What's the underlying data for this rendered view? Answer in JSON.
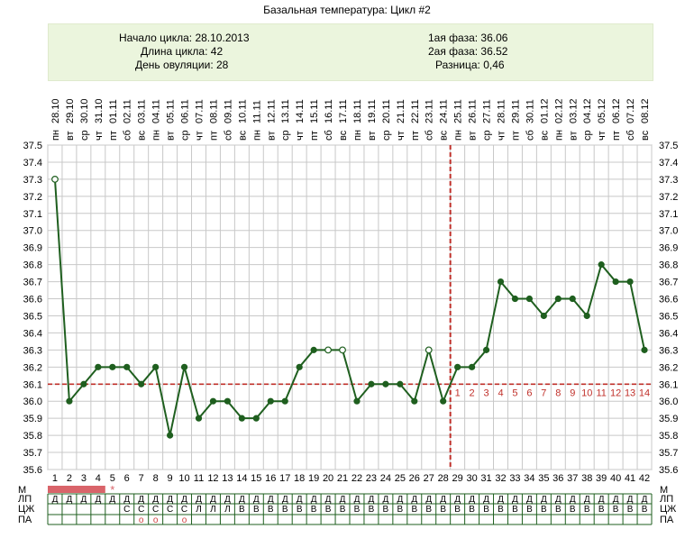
{
  "chart_data": {
    "type": "line",
    "title": "Базальная температура: Цикл #2",
    "summary": {
      "cycle_start": "Начало цикла: 28.10.2013",
      "cycle_length": "Длина цикла: 42",
      "ovulation_day": "День овуляции: 28",
      "phase1": "1ая фаза: 36.06",
      "phase2": "2ая фаза: 36.52",
      "difference": "Разница: 0,46"
    },
    "dates": [
      "28.10",
      "29.10",
      "30.10",
      "31.10",
      "01.11",
      "02.11",
      "03.11",
      "04.11",
      "05.11",
      "06.11",
      "07.11",
      "08.11",
      "09.11",
      "10.11",
      "11.11",
      "12.11",
      "13.11",
      "14.11",
      "15.11",
      "16.11",
      "17.11",
      "18.11",
      "19.11",
      "20.11",
      "21.11",
      "22.11",
      "23.11",
      "24.11",
      "25.11",
      "26.11",
      "27.11",
      "28.11",
      "29.11",
      "30.11",
      "01.12",
      "02.12",
      "03.12",
      "04.12",
      "05.12",
      "06.12",
      "07.12",
      "08.12"
    ],
    "weekdays": [
      "пн",
      "вт",
      "ср",
      "чт",
      "пт",
      "сб",
      "вс",
      "пн",
      "вт",
      "ср",
      "чт",
      "пт",
      "сб",
      "вс",
      "пн",
      "вт",
      "ср",
      "чт",
      "пт",
      "сб",
      "вс",
      "пн",
      "вт",
      "ср",
      "чт",
      "пт",
      "сб",
      "вс",
      "пн",
      "вт",
      "ср",
      "чт",
      "пт",
      "сб",
      "вс",
      "пн",
      "вт",
      "ср",
      "чт",
      "пт",
      "сб",
      "вс"
    ],
    "days": [
      1,
      2,
      3,
      4,
      5,
      6,
      7,
      8,
      9,
      10,
      11,
      12,
      13,
      14,
      15,
      16,
      17,
      18,
      19,
      20,
      21,
      22,
      23,
      24,
      25,
      26,
      27,
      28,
      29,
      30,
      31,
      32,
      33,
      34,
      35,
      36,
      37,
      38,
      39,
      40,
      41,
      42
    ],
    "values": [
      37.3,
      36.0,
      36.1,
      36.2,
      36.2,
      36.2,
      36.1,
      36.2,
      35.8,
      36.2,
      35.9,
      36.0,
      36.0,
      35.9,
      35.9,
      36.0,
      36.0,
      36.2,
      36.3,
      36.3,
      36.3,
      36.0,
      36.1,
      36.1,
      36.1,
      36.0,
      36.3,
      36.0,
      36.2,
      36.2,
      36.3,
      36.7,
      36.6,
      36.6,
      36.5,
      36.6,
      36.6,
      36.5,
      36.8,
      36.7,
      36.7,
      36.3
    ],
    "open_markers": [
      1,
      20,
      21,
      27
    ],
    "ylim": [
      35.6,
      37.5
    ],
    "y_ticks": [
      "37.5",
      "37.4",
      "37.3",
      "37.2",
      "37.1",
      "37.0",
      "36.9",
      "36.8",
      "36.7",
      "36.6",
      "36.5",
      "36.4",
      "36.3",
      "36.2",
      "36.1",
      "36.0",
      "35.9",
      "35.8",
      "35.7",
      "35.6"
    ],
    "coverline": 36.1,
    "ovulation_day_index": 28,
    "luteal_labels": [
      "1",
      "2",
      "3",
      "4",
      "5",
      "6",
      "7",
      "8",
      "9",
      "10",
      "11",
      "12",
      "13",
      "14"
    ],
    "row_labels": {
      "m": "М",
      "lp": "ЛП",
      "cj": "ЦЖ",
      "pa": "ПА"
    },
    "menstruation_days": 4,
    "star_day": 5,
    "star_symbol": "*",
    "lp_row": [
      "Д",
      "Д",
      "Д",
      "Д",
      "Д",
      "Д",
      "Д",
      "Д",
      "Д",
      "Д",
      "Д",
      "Д",
      "Д",
      "Д",
      "Д",
      "Д",
      "Д",
      "Д",
      "Д",
      "Д",
      "Д",
      "Д",
      "Д",
      "Д",
      "Д",
      "Д",
      "Д",
      "Д",
      "Д",
      "Д",
      "Д",
      "Д",
      "Д",
      "Д",
      "Д",
      "Д",
      "Д",
      "Д",
      "Д",
      "Д",
      "Д",
      "Д"
    ],
    "cj_row": [
      "",
      "",
      "",
      "",
      "",
      "С",
      "С",
      "С",
      "С",
      "С",
      "Л",
      "Л",
      "Л",
      "В",
      "В",
      "В",
      "В",
      "В",
      "В",
      "В",
      "В",
      "В",
      "В",
      "В",
      "В",
      "В",
      "В",
      "В",
      "В",
      "В",
      "В",
      "В",
      "В",
      "В",
      "В",
      "В",
      "В",
      "В",
      "В",
      "В",
      "В",
      "В"
    ],
    "pa_row": [
      "",
      "",
      "",
      "",
      "",
      "",
      "о",
      "о",
      "",
      "о",
      "",
      "",
      "",
      "",
      "",
      "",
      "",
      "",
      "",
      "",
      "",
      "",
      "",
      "",
      "",
      "",
      "",
      "",
      "",
      "",
      "",
      "",
      "",
      "",
      "",
      "",
      "",
      "",
      "",
      "",
      "",
      ""
    ],
    "colors": {
      "line": "#1f5f1f",
      "coverline": "#c0302a",
      "ovulation": "#c0302a",
      "grid": "#c8c8c8",
      "info_bg": "#ebf5dd",
      "menstruation": "#d9646a",
      "luteal_label": "#c0302a",
      "pa_marker": "#d04040"
    }
  }
}
